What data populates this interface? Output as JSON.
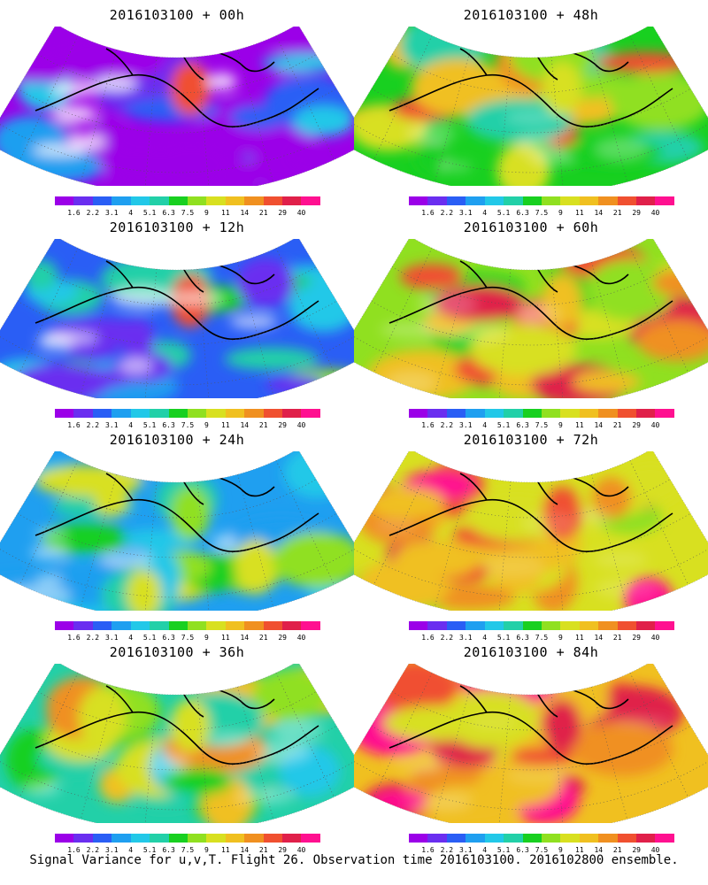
{
  "panels": [
    {
      "title": "2016103100 + 00h",
      "level": 0.12,
      "hot": 0.85
    },
    {
      "title": "2016103100 + 48h",
      "level": 0.62,
      "hot": 0.6
    },
    {
      "title": "2016103100 + 12h",
      "level": 0.3,
      "hot": 0.8
    },
    {
      "title": "2016103100 + 60h",
      "level": 0.66,
      "hot": 0.65
    },
    {
      "title": "2016103100 + 24h",
      "level": 0.4,
      "hot": 0.55
    },
    {
      "title": "2016103100 + 72h",
      "level": 0.74,
      "hot": 0.8
    },
    {
      "title": "2016103100 + 36h",
      "level": 0.55,
      "hot": 0.6
    },
    {
      "title": "2016103100 + 84h",
      "level": 0.8,
      "hot": 0.9
    }
  ],
  "colorbar": {
    "labels": [
      "1.6",
      "2.2",
      "3.1",
      "4",
      "5.1",
      "6.3",
      "7.5",
      "9",
      "11",
      "14",
      "21",
      "29",
      "40"
    ],
    "colors": [
      "#9b00e8",
      "#6a2ef0",
      "#2a5ef5",
      "#1f9ff0",
      "#22c8e8",
      "#22d0a8",
      "#18d020",
      "#90e020",
      "#d8e020",
      "#f0c020",
      "#f09020",
      "#f05030",
      "#e0204a",
      "#ff1090"
    ]
  },
  "caption": "Signal Variance for u,v,T. Flight 26. Observation time 2016103100. 2016102800 ensemble."
}
